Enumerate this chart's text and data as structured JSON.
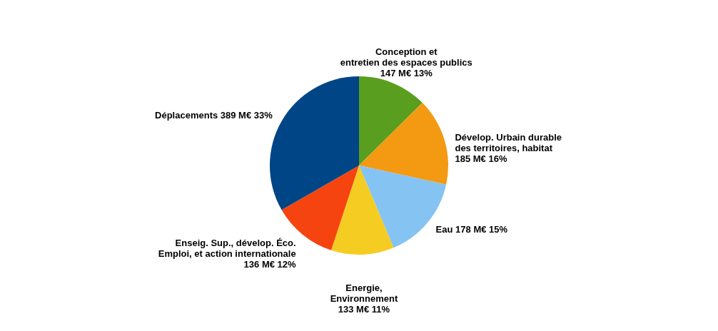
{
  "chart_data": {
    "type": "pie",
    "categories": [
      "Conception et\nentretien des espaces publics",
      "Dévelop. Urbain durable\ndes territoires, habitat",
      "Eau",
      "Energie,\nEnvironnement",
      "Enseig. Sup., dévelop. Éco.\nEmploi, et action internationale",
      "Déplacements"
    ],
    "values": [
      147,
      185,
      178,
      133,
      136,
      389
    ],
    "value_labels": [
      "147 M€ 13%",
      "185 M€ 16%",
      "178 M€ 15%",
      "133 M€ 11%",
      "136 M€ 12%",
      "389 M€ 33%"
    ],
    "colors": [
      "#5a9e1f",
      "#f39a12",
      "#85c3f2",
      "#f5cc22",
      "#f5440f",
      "#004586"
    ]
  }
}
